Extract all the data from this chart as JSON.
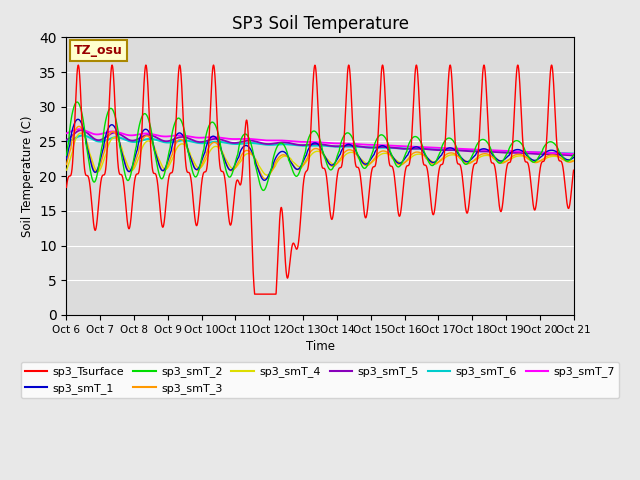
{
  "title": "SP3 Soil Temperature",
  "ylabel": "Soil Temperature (C)",
  "xlabel": "Time",
  "xlim": [
    0,
    15.0
  ],
  "ylim": [
    0,
    40
  ],
  "yticks": [
    0,
    5,
    10,
    15,
    20,
    25,
    30,
    35,
    40
  ],
  "xtick_labels": [
    "Oct 6",
    "Oct 7",
    "Oct 8",
    "Oct 9",
    "Oct 10",
    "Oct 11",
    "Oct 12",
    "Oct 13",
    "Oct 14",
    "Oct 15",
    "Oct 16",
    "Oct 17",
    "Oct 18",
    "Oct 19",
    "Oct 20",
    "Oct 21"
  ],
  "tz_label": "TZ_osu",
  "series_colors": {
    "sp3_Tsurface": "#ff0000",
    "sp3_smT_1": "#0000cc",
    "sp3_smT_2": "#00dd00",
    "sp3_smT_3": "#ff9900",
    "sp3_smT_4": "#dddd00",
    "sp3_smT_5": "#8800bb",
    "sp3_smT_6": "#00cccc",
    "sp3_smT_7": "#ff00ff"
  },
  "background_color": "#dcdcdc",
  "fig_facecolor": "#e8e8e8",
  "legend_fontsize": 8,
  "title_fontsize": 12
}
